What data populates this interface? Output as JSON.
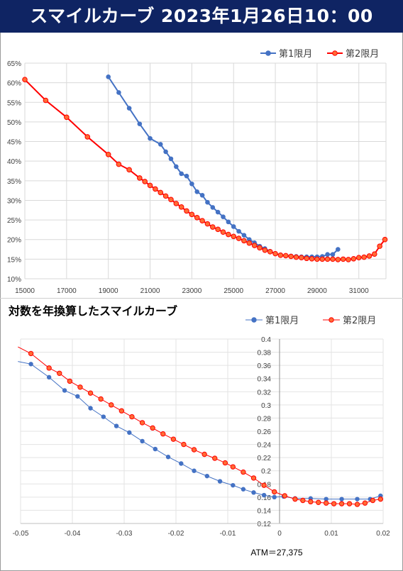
{
  "header": {
    "title": "スマイルカーブ 2023年1月26日10：00"
  },
  "chart_data": [
    {
      "type": "line",
      "title": "",
      "xlabel": "",
      "ylabel": "",
      "xlim": [
        15000,
        32300
      ],
      "ylim": [
        0.1,
        0.65
      ],
      "x_ticks": [
        15000,
        17000,
        19000,
        21000,
        23000,
        25000,
        27000,
        29000,
        31000
      ],
      "x_tick_labels": [
        "15000",
        "17000",
        "19000",
        "21000",
        "23000",
        "25000",
        "27000",
        "29000",
        "31000"
      ],
      "y_ticks": [
        0.1,
        0.15,
        0.2,
        0.25,
        0.3,
        0.35,
        0.4,
        0.45,
        0.5,
        0.55,
        0.6,
        0.65
      ],
      "y_tick_labels": [
        "10%",
        "15%",
        "20%",
        "25%",
        "30%",
        "35%",
        "40%",
        "45%",
        "50%",
        "55%",
        "60%",
        "65%"
      ],
      "grid": true,
      "legend": "top-right",
      "series": [
        {
          "name": "第1限月",
          "color": "#4472c4",
          "x": [
            19000,
            19500,
            20000,
            20500,
            21000,
            21500,
            21750,
            22000,
            22250,
            22500,
            22750,
            23000,
            23250,
            23500,
            23750,
            24000,
            24250,
            24500,
            24750,
            25000,
            25250,
            25500,
            25750,
            26000,
            26250,
            26500,
            26750,
            27000,
            27250,
            27500,
            27750,
            28000,
            28250,
            28500,
            28750,
            29000,
            29250,
            29500,
            29750,
            30000
          ],
          "y": [
            0.615,
            0.575,
            0.535,
            0.495,
            0.458,
            0.443,
            0.424,
            0.406,
            0.386,
            0.368,
            0.362,
            0.342,
            0.322,
            0.313,
            0.295,
            0.282,
            0.27,
            0.258,
            0.245,
            0.233,
            0.221,
            0.211,
            0.2,
            0.192,
            0.183,
            0.177,
            0.17,
            0.164,
            0.161,
            0.159,
            0.158,
            0.157,
            0.156,
            0.156,
            0.156,
            0.156,
            0.157,
            0.162,
            0.162,
            0.175
          ]
        },
        {
          "name": "第2限月",
          "color": "#ff0000",
          "x": [
            15000,
            16000,
            17000,
            18000,
            19000,
            19500,
            20000,
            20500,
            20750,
            21000,
            21250,
            21500,
            21750,
            22000,
            22250,
            22500,
            22750,
            23000,
            23250,
            23500,
            23750,
            24000,
            24250,
            24500,
            24750,
            25000,
            25250,
            25500,
            25750,
            26000,
            26250,
            26500,
            26750,
            27000,
            27250,
            27500,
            27750,
            28000,
            28250,
            28500,
            28750,
            29000,
            29250,
            29500,
            29750,
            30000,
            30250,
            30500,
            30750,
            31000,
            31250,
            31500,
            31750,
            32000,
            32250
          ],
          "y": [
            0.608,
            0.555,
            0.512,
            0.462,
            0.417,
            0.392,
            0.378,
            0.357,
            0.348,
            0.338,
            0.329,
            0.32,
            0.311,
            0.302,
            0.292,
            0.283,
            0.273,
            0.264,
            0.256,
            0.248,
            0.24,
            0.232,
            0.226,
            0.219,
            0.213,
            0.208,
            0.203,
            0.197,
            0.191,
            0.185,
            0.179,
            0.173,
            0.169,
            0.164,
            0.16,
            0.159,
            0.157,
            0.155,
            0.154,
            0.152,
            0.151,
            0.15,
            0.15,
            0.15,
            0.15,
            0.149,
            0.15,
            0.149,
            0.151,
            0.154,
            0.155,
            0.158,
            0.163,
            0.183,
            0.2
          ]
        }
      ]
    },
    {
      "type": "line",
      "title": "対数を年換算したスマイルカーブ",
      "xlabel": "",
      "ylabel": "",
      "xlim": [
        -0.05,
        0.02
      ],
      "ylim": [
        0.12,
        0.4
      ],
      "x_ticks": [
        -0.05,
        -0.04,
        -0.03,
        -0.02,
        -0.01,
        0,
        0.01,
        0.02
      ],
      "x_tick_labels": [
        "-0.05",
        "-0.04",
        "-0.03",
        "-0.02",
        "-0.01",
        "0",
        "0.01",
        "0.02"
      ],
      "y_ticks": [
        0.12,
        0.14,
        0.16,
        0.18,
        0.2,
        0.22,
        0.24,
        0.26,
        0.28,
        0.3,
        0.32,
        0.34,
        0.36,
        0.38,
        0.4
      ],
      "y_tick_labels": [
        "0.12",
        "0.14",
        "0.16",
        "0.18",
        "0.2",
        "0.22",
        "0.24",
        "0.26",
        "0.28",
        "0.3",
        "0.32",
        "0.34",
        "0.36",
        "0.38",
        "0.4"
      ],
      "grid": true,
      "legend": "top-right",
      "annotation": "ATM＝27,375",
      "series": [
        {
          "name": "第1限月",
          "color": "#4472c4",
          "x": [
            -0.0505,
            -0.048,
            -0.0445,
            -0.0415,
            -0.039,
            -0.0365,
            -0.034,
            -0.0315,
            -0.029,
            -0.0265,
            -0.024,
            -0.0215,
            -0.019,
            -0.0165,
            -0.014,
            -0.0115,
            -0.009,
            -0.007,
            -0.005,
            -0.003,
            -0.001,
            0.0008,
            0.003,
            0.006,
            0.009,
            0.012,
            0.015,
            0.0175,
            0.0195
          ],
          "y": [
            0.366,
            0.362,
            0.342,
            0.322,
            0.313,
            0.295,
            0.282,
            0.268,
            0.258,
            0.245,
            0.233,
            0.221,
            0.211,
            0.2,
            0.192,
            0.184,
            0.178,
            0.172,
            0.167,
            0.163,
            0.16,
            0.161,
            0.158,
            0.158,
            0.157,
            0.157,
            0.157,
            0.157,
            0.162
          ]
        },
        {
          "name": "第2限月",
          "color": "#ff0000",
          "x": [
            -0.0505,
            -0.048,
            -0.0445,
            -0.0425,
            -0.0405,
            -0.0385,
            -0.0365,
            -0.0345,
            -0.0325,
            -0.0305,
            -0.0285,
            -0.0265,
            -0.0245,
            -0.0225,
            -0.0205,
            -0.0185,
            -0.0165,
            -0.0145,
            -0.0125,
            -0.0105,
            -0.009,
            -0.007,
            -0.005,
            -0.003,
            -0.001,
            0.001,
            0.003,
            0.0045,
            0.006,
            0.0075,
            0.009,
            0.0105,
            0.012,
            0.0135,
            0.015,
            0.0165,
            0.018,
            0.0195
          ],
          "y": [
            0.388,
            0.378,
            0.356,
            0.348,
            0.336,
            0.327,
            0.318,
            0.309,
            0.3,
            0.291,
            0.282,
            0.273,
            0.265,
            0.256,
            0.248,
            0.24,
            0.232,
            0.225,
            0.219,
            0.212,
            0.206,
            0.198,
            0.189,
            0.178,
            0.168,
            0.162,
            0.157,
            0.155,
            0.153,
            0.152,
            0.151,
            0.15,
            0.15,
            0.15,
            0.149,
            0.151,
            0.155,
            0.157
          ]
        }
      ]
    }
  ]
}
